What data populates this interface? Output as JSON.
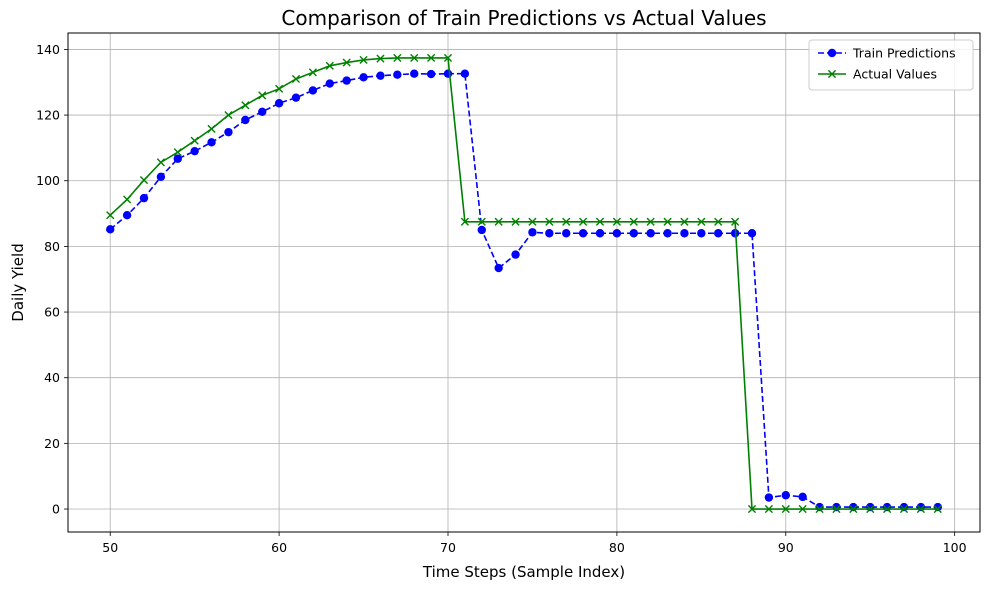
{
  "chart_data": {
    "type": "line",
    "title": "Comparison of Train Predictions vs Actual Values",
    "xlabel": "Time Steps (Sample Index)",
    "ylabel": "Daily Yield",
    "xlim": [
      47.5,
      101.5
    ],
    "ylim": [
      -7,
      145
    ],
    "xticks": [
      50,
      60,
      70,
      80,
      90,
      100
    ],
    "yticks": [
      0,
      20,
      40,
      60,
      80,
      100,
      120,
      140
    ],
    "grid": true,
    "legend_position": "top-right",
    "x": [
      50,
      51,
      52,
      53,
      54,
      55,
      56,
      57,
      58,
      59,
      60,
      61,
      62,
      63,
      64,
      65,
      66,
      67,
      68,
      69,
      70,
      71,
      72,
      73,
      74,
      75,
      76,
      77,
      78,
      79,
      80,
      81,
      82,
      83,
      84,
      85,
      86,
      87,
      88,
      89,
      90,
      91,
      92,
      93,
      94,
      95,
      96,
      97,
      98,
      99
    ],
    "series": [
      {
        "name": "Train Predictions",
        "color": "#0000ff",
        "line_style": "dashed",
        "marker": "circle",
        "values": [
          85.2,
          89.5,
          94.7,
          101.2,
          106.7,
          109.0,
          111.7,
          114.8,
          118.5,
          121.0,
          123.6,
          125.3,
          127.5,
          129.6,
          130.5,
          131.5,
          132.0,
          132.3,
          132.6,
          132.5,
          132.6,
          132.6,
          85.0,
          73.4,
          77.5,
          84.3,
          84.0,
          84.0,
          84.0,
          84.0,
          84.0,
          84.0,
          84.0,
          84.0,
          84.0,
          84.0,
          84.0,
          84.0,
          84.0,
          3.5,
          4.2,
          3.7,
          0.6,
          0.6,
          0.6,
          0.6,
          0.6,
          0.6,
          0.6,
          0.6
        ]
      },
      {
        "name": "Actual Values",
        "color": "#008000",
        "line_style": "solid",
        "marker": "x",
        "values": [
          89.5,
          94.3,
          100.2,
          105.6,
          108.7,
          112.2,
          115.8,
          120.0,
          123.0,
          126.0,
          128.0,
          131.0,
          133.0,
          135.0,
          136.0,
          136.8,
          137.2,
          137.4,
          137.4,
          137.4,
          137.4,
          87.5,
          87.5,
          87.5,
          87.5,
          87.5,
          87.5,
          87.5,
          87.5,
          87.5,
          87.5,
          87.5,
          87.5,
          87.5,
          87.5,
          87.5,
          87.5,
          87.5,
          0.0,
          0.0,
          0.0,
          0.0,
          0.0,
          0.0,
          0.0,
          0.0,
          0.0,
          0.0,
          0.0,
          0.0
        ]
      }
    ]
  }
}
